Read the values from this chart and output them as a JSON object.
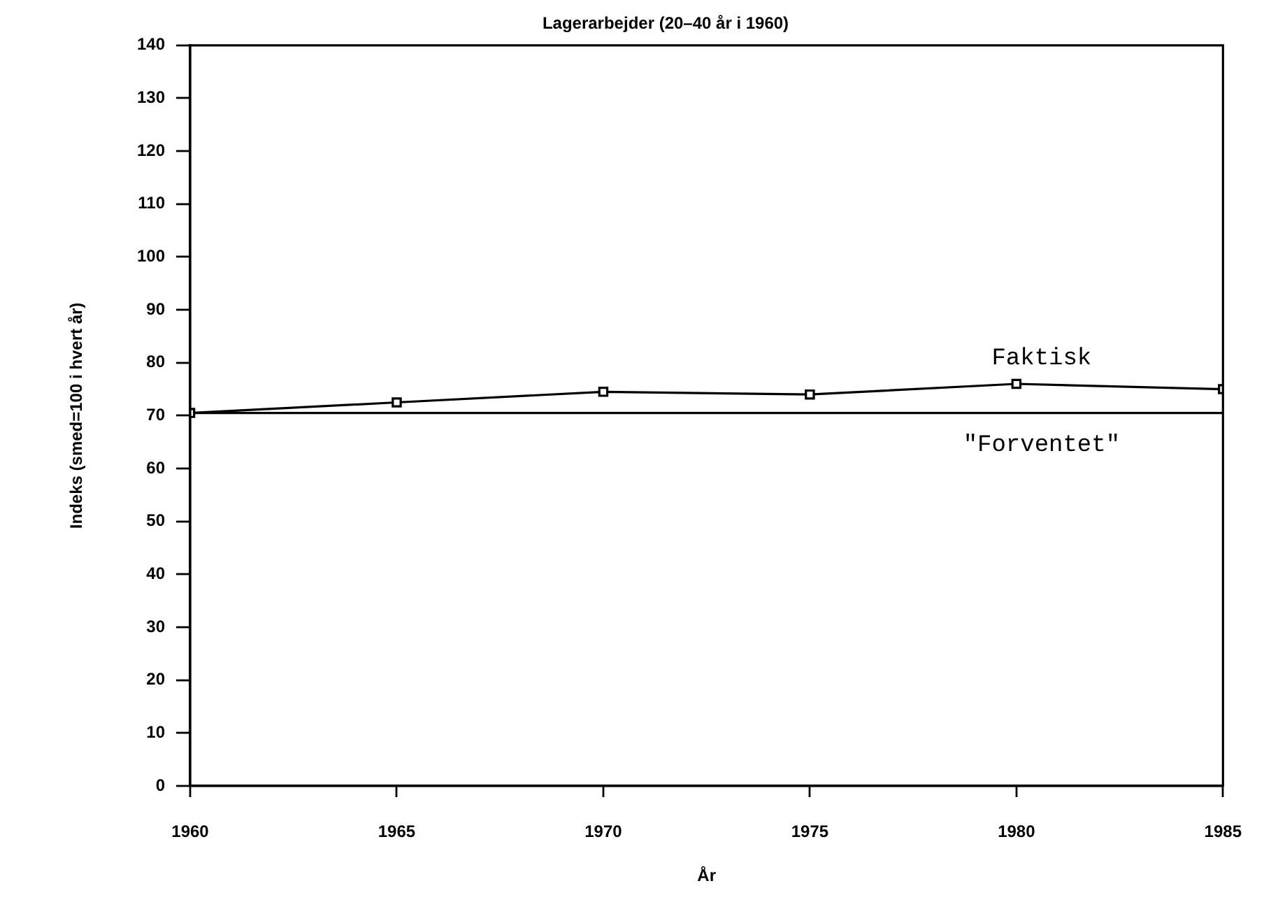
{
  "chart_data": {
    "type": "line",
    "title": "Lagerarbejder (20–40 år i 1960)",
    "xlabel": "År",
    "ylabel": "Indeks (smed=100 i hvert år)",
    "x": [
      1960,
      1965,
      1970,
      1975,
      1980,
      1985
    ],
    "xlim": [
      1960,
      1985
    ],
    "xticks": [
      1960,
      1965,
      1970,
      1975,
      1980,
      1985
    ],
    "ylim": [
      0,
      140
    ],
    "yticks": [
      0,
      10,
      20,
      30,
      40,
      50,
      60,
      70,
      80,
      90,
      100,
      110,
      120,
      130,
      140
    ],
    "marker": "square",
    "legend": false,
    "series": [
      {
        "name": "Faktisk",
        "color": "#000000",
        "values": [
          70.5,
          72.5,
          74.5,
          74,
          76,
          75
        ]
      },
      {
        "name": "\"Forventet\"",
        "color": "#000000",
        "marker": "none",
        "values": [
          70.5,
          70.5,
          70.5,
          70.5,
          70.5,
          70.5
        ]
      }
    ]
  }
}
